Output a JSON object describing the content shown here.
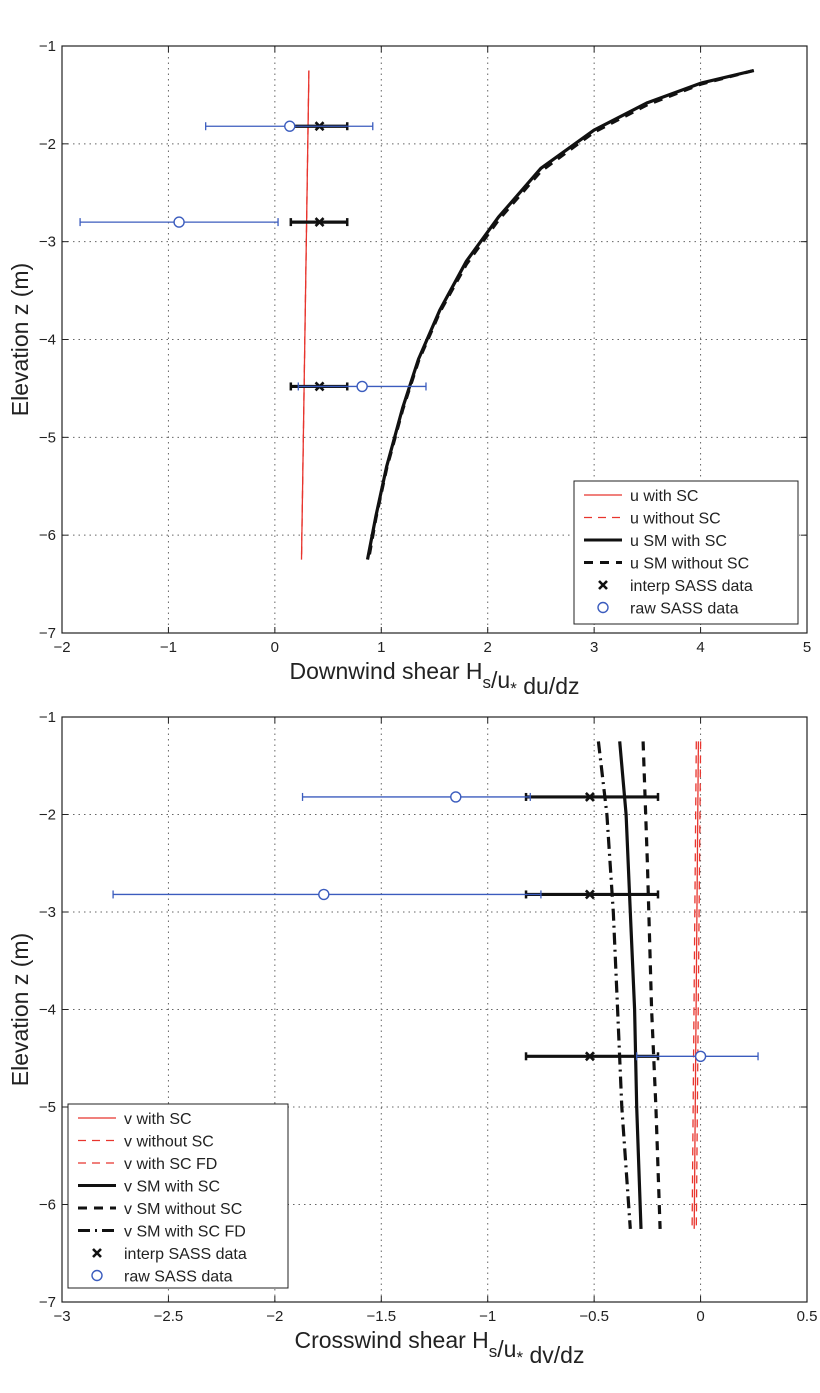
{
  "chart_data": [
    {
      "type": "line",
      "xlabel": "Downwind shear H_s/u_* du/dz",
      "ylabel": "Elevation z (m)",
      "xlim": [
        -2,
        5
      ],
      "ylim": [
        -7,
        -1
      ],
      "xticks": [
        "−2",
        "−1",
        "0",
        "1",
        "2",
        "3",
        "4",
        "5"
      ],
      "yticks": [
        "−7",
        "−6",
        "−5",
        "−4",
        "−3",
        "−2",
        "−1"
      ],
      "grid": true,
      "legend_position": "bottom-right",
      "series": [
        {
          "name": "u with SC",
          "kind": "line",
          "color": "#e8352e",
          "style": "solid",
          "points": [
            [
              0.32,
              -1.25
            ],
            [
              0.25,
              -6.25
            ]
          ]
        },
        {
          "name": "u without SC",
          "kind": "line",
          "color": "#e8352e",
          "style": "dashed",
          "points": [
            [
              0.32,
              -1.25
            ],
            [
              0.25,
              -6.25
            ]
          ]
        },
        {
          "name": "u SM with SC",
          "kind": "line",
          "color": "#111111",
          "style": "solid",
          "points": [
            [
              4.5,
              -1.25
            ],
            [
              4.0,
              -1.38
            ],
            [
              3.5,
              -1.58
            ],
            [
              3.0,
              -1.86
            ],
            [
              2.5,
              -2.25
            ],
            [
              2.1,
              -2.75
            ],
            [
              1.8,
              -3.2
            ],
            [
              1.55,
              -3.7
            ],
            [
              1.35,
              -4.2
            ],
            [
              1.2,
              -4.7
            ],
            [
              1.05,
              -5.3
            ],
            [
              0.95,
              -5.8
            ],
            [
              0.87,
              -6.25
            ]
          ]
        },
        {
          "name": "u SM without SC",
          "kind": "line",
          "color": "#111111",
          "style": "dashed",
          "points": [
            [
              4.5,
              -1.25
            ],
            [
              4.0,
              -1.39
            ],
            [
              3.5,
              -1.6
            ],
            [
              3.0,
              -1.88
            ],
            [
              2.5,
              -2.28
            ],
            [
              2.1,
              -2.78
            ],
            [
              1.8,
              -3.23
            ],
            [
              1.55,
              -3.72
            ],
            [
              1.35,
              -4.22
            ],
            [
              1.2,
              -4.72
            ],
            [
              1.05,
              -5.32
            ],
            [
              0.95,
              -5.82
            ],
            [
              0.88,
              -6.25
            ]
          ]
        },
        {
          "name": "interp SASS data",
          "kind": "errorbar",
          "color": "#111111",
          "marker": "x",
          "points": [
            {
              "x": 0.42,
              "y": -1.82,
              "xmin": 0.15,
              "xmax": 0.68
            },
            {
              "x": 0.42,
              "y": -2.8,
              "xmin": 0.15,
              "xmax": 0.68
            },
            {
              "x": 0.42,
              "y": -4.48,
              "xmin": 0.15,
              "xmax": 0.68
            }
          ]
        },
        {
          "name": "raw SASS data",
          "kind": "errorbar",
          "color": "#3b5cbe",
          "marker": "o",
          "points": [
            {
              "x": 0.14,
              "y": -1.82,
              "xmin": -0.65,
              "xmax": 0.92
            },
            {
              "x": -0.9,
              "y": -2.8,
              "xmin": -1.83,
              "xmax": 0.03
            },
            {
              "x": 0.82,
              "y": -4.48,
              "xmin": 0.22,
              "xmax": 1.42
            }
          ]
        }
      ]
    },
    {
      "type": "line",
      "xlabel": "Crosswind shear H_s/u_* dv/dz",
      "ylabel": "Elevation z (m)",
      "xlim": [
        -3,
        0.5
      ],
      "ylim": [
        -7,
        -1
      ],
      "xticks": [
        "−3",
        "−2.5",
        "−2",
        "−1.5",
        "−1",
        "−0.5",
        "0",
        "0.5"
      ],
      "yticks": [
        "−7",
        "−6",
        "−5",
        "−4",
        "−3",
        "−2",
        "−1"
      ],
      "grid": true,
      "legend_position": "bottom-left",
      "series": [
        {
          "name": "v with SC",
          "kind": "line",
          "color": "#e8352e",
          "style": "solid",
          "points": [
            [
              -0.01,
              -1.25
            ],
            [
              -0.03,
              -6.25
            ]
          ]
        },
        {
          "name": "v without SC",
          "kind": "line",
          "color": "#e8352e",
          "style": "dashed",
          "points": [
            [
              -0.02,
              -1.25
            ],
            [
              -0.04,
              -6.25
            ]
          ]
        },
        {
          "name": "v with SC FD",
          "kind": "line",
          "color": "#e8352e",
          "style": "dashed",
          "points": [
            [
              0.0,
              -1.25
            ],
            [
              -0.02,
              -6.25
            ]
          ]
        },
        {
          "name": "v SM with SC",
          "kind": "line",
          "color": "#111111",
          "style": "solid",
          "points": [
            [
              -0.38,
              -1.25
            ],
            [
              -0.35,
              -2.0
            ],
            [
              -0.33,
              -3.0
            ],
            [
              -0.31,
              -4.0
            ],
            [
              -0.3,
              -5.0
            ],
            [
              -0.28,
              -6.25
            ]
          ]
        },
        {
          "name": "v SM without SC",
          "kind": "line",
          "color": "#111111",
          "style": "dashed",
          "points": [
            [
              -0.27,
              -1.25
            ],
            [
              -0.25,
              -2.5
            ],
            [
              -0.23,
              -4.0
            ],
            [
              -0.21,
              -5.0
            ],
            [
              -0.19,
              -6.25
            ]
          ]
        },
        {
          "name": "v SM with SC FD",
          "kind": "line",
          "color": "#111111",
          "style": "dashdot",
          "points": [
            [
              -0.48,
              -1.25
            ],
            [
              -0.44,
              -2.0
            ],
            [
              -0.41,
              -3.0
            ],
            [
              -0.39,
              -4.0
            ],
            [
              -0.37,
              -5.0
            ],
            [
              -0.33,
              -6.25
            ]
          ]
        },
        {
          "name": "interp SASS data",
          "kind": "errorbar",
          "color": "#111111",
          "marker": "x",
          "points": [
            {
              "x": -0.52,
              "y": -1.82,
              "xmin": -0.82,
              "xmax": -0.2
            },
            {
              "x": -0.52,
              "y": -2.82,
              "xmin": -0.82,
              "xmax": -0.2
            },
            {
              "x": -0.52,
              "y": -4.48,
              "xmin": -0.82,
              "xmax": -0.2
            }
          ]
        },
        {
          "name": "raw SASS data",
          "kind": "errorbar",
          "color": "#3b5cbe",
          "marker": "o",
          "points": [
            {
              "x": -1.15,
              "y": -1.82,
              "xmin": -1.87,
              "xmax": -0.8
            },
            {
              "x": -1.77,
              "y": -2.82,
              "xmin": -2.76,
              "xmax": -0.75
            },
            {
              "x": 0.0,
              "y": -4.48,
              "xmin": -0.3,
              "xmax": 0.27
            }
          ]
        }
      ]
    }
  ]
}
